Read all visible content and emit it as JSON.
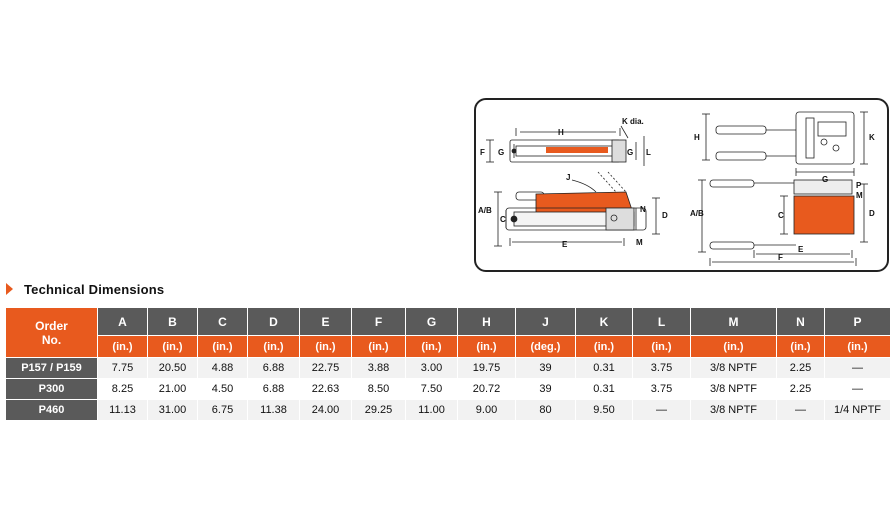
{
  "diagram": {
    "labels": {
      "H_top": "H",
      "K_dia": "K dia.",
      "F": "F",
      "G_left": "G",
      "G_right": "G",
      "L": "L",
      "J": "J",
      "A_B_left": "A/B",
      "C_left": "C",
      "N": "N",
      "D_left": "D",
      "E_left": "E",
      "M_left": "M",
      "H_right": "H",
      "K_right": "K",
      "G_top_right": "G",
      "P": "P",
      "M_right": "M",
      "A_B_right": "A/B",
      "C_right": "C",
      "D_right": "D",
      "E_right": "E",
      "F_right": "F"
    },
    "colors": {
      "pump_body": "#e85a1e",
      "line": "#222222"
    }
  },
  "heading": "Technical Dimensions",
  "table": {
    "order_header_line1": "Order",
    "order_header_line2": "No.",
    "columns": [
      {
        "letter": "A",
        "unit": "(in.)"
      },
      {
        "letter": "B",
        "unit": "(in.)"
      },
      {
        "letter": "C",
        "unit": "(in.)"
      },
      {
        "letter": "D",
        "unit": "(in.)"
      },
      {
        "letter": "E",
        "unit": "(in.)"
      },
      {
        "letter": "F",
        "unit": "(in.)"
      },
      {
        "letter": "G",
        "unit": "(in.)"
      },
      {
        "letter": "H",
        "unit": "(in.)"
      },
      {
        "letter": "J",
        "unit": "(deg.)"
      },
      {
        "letter": "K",
        "unit": "(in.)"
      },
      {
        "letter": "L",
        "unit": "(in.)"
      },
      {
        "letter": "M",
        "unit": "(in.)"
      },
      {
        "letter": "N",
        "unit": "(in.)"
      },
      {
        "letter": "P",
        "unit": "(in.)"
      }
    ],
    "rows": [
      {
        "order": "P157 / P159",
        "values": [
          "7.75",
          "20.50",
          "4.88",
          "6.88",
          "22.75",
          "3.88",
          "3.00",
          "19.75",
          "39",
          "0.31",
          "3.75",
          "3/8 NPTF",
          "2.25",
          "—"
        ]
      },
      {
        "order": "P300",
        "values": [
          "8.25",
          "21.00",
          "4.50",
          "6.88",
          "22.63",
          "8.50",
          "7.50",
          "20.72",
          "39",
          "0.31",
          "3.75",
          "3/8 NPTF",
          "2.25",
          "—"
        ]
      },
      {
        "order": "P460",
        "values": [
          "11.13",
          "31.00",
          "6.75",
          "11.38",
          "24.00",
          "29.25",
          "11.00",
          "9.00",
          "80",
          "9.50",
          "—",
          "3/8 NPTF",
          "—",
          "1/4 NPTF"
        ]
      }
    ]
  }
}
